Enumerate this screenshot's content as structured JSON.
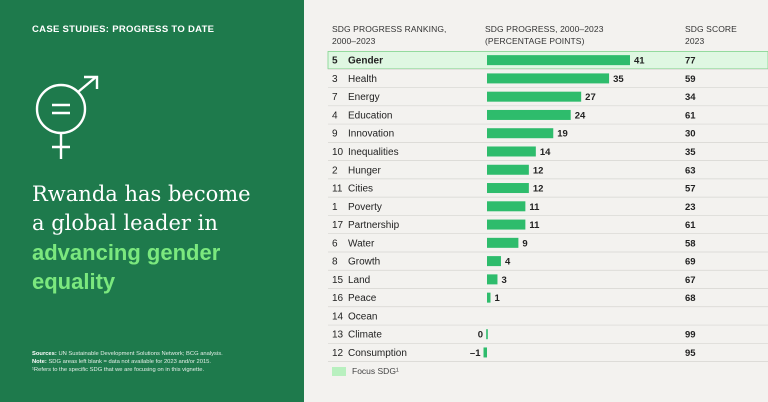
{
  "panel": {
    "kicker": "CASE STUDIES: PROGRESS TO DATE",
    "headline_line1": "Rwanda has become",
    "headline_line2": "a global leader in",
    "headline_accent1": "advancing gender",
    "headline_accent2": "equality",
    "icon": "gender-equality-icon",
    "sources_label": "Sources:",
    "sources_text": "UN Sustainable Development Solutions Network; BCG analysis.",
    "note_label": "Note:",
    "note_text": "SDG areas left blank = data not available for 2023 and/or 2015.",
    "footnote_text": "¹Refers to the specific SDG that we are focusing on in this vignette."
  },
  "colors": {
    "panel_bg": "#1e7a4c",
    "bar": "#2ebc6c",
    "focus_bg": "#dff7e2",
    "focus_border": "#7fd48c",
    "accent_text": "#7be87e"
  },
  "legend": {
    "label": "Focus SDG¹"
  },
  "chart_data": {
    "type": "bar",
    "orientation": "horizontal",
    "headers": {
      "ranking_line1": "SDG PROGRESS RANKING,",
      "ranking_line2": "2000–2023",
      "progress_line1": "SDG PROGRESS, 2000–2023",
      "progress_line2": "(PERCENTAGE POINTS)",
      "score_line1": "SDG SCORE",
      "score_line2": "2023"
    },
    "focus": "Gender",
    "rows": [
      {
        "rank": "5",
        "name": "Gender",
        "progress": 41,
        "label": "41",
        "score": "77"
      },
      {
        "rank": "3",
        "name": "Health",
        "progress": 35,
        "label": "35",
        "score": "59"
      },
      {
        "rank": "7",
        "name": "Energy",
        "progress": 27,
        "label": "27",
        "score": "34"
      },
      {
        "rank": "4",
        "name": "Education",
        "progress": 24,
        "label": "24",
        "score": "61"
      },
      {
        "rank": "9",
        "name": "Innovation",
        "progress": 19,
        "label": "19",
        "score": "30"
      },
      {
        "rank": "10",
        "name": "Inequalities",
        "progress": 14,
        "label": "14",
        "score": "35"
      },
      {
        "rank": "2",
        "name": "Hunger",
        "progress": 12,
        "label": "12",
        "score": "63"
      },
      {
        "rank": "11",
        "name": "Cities",
        "progress": 12,
        "label": "12",
        "score": "57"
      },
      {
        "rank": "1",
        "name": "Poverty",
        "progress": 11,
        "label": "11",
        "score": "23"
      },
      {
        "rank": "17",
        "name": "Partnership",
        "progress": 11,
        "label": "11",
        "score": "61"
      },
      {
        "rank": "6",
        "name": "Water",
        "progress": 9,
        "label": "9",
        "score": "58"
      },
      {
        "rank": "8",
        "name": "Growth",
        "progress": 4,
        "label": "4",
        "score": "69"
      },
      {
        "rank": "15",
        "name": "Land",
        "progress": 3,
        "label": "3",
        "score": "67"
      },
      {
        "rank": "16",
        "name": "Peace",
        "progress": 1,
        "label": "1",
        "score": "68"
      },
      {
        "rank": "14",
        "name": "Ocean",
        "progress": null,
        "label": "",
        "score": ""
      },
      {
        "rank": "13",
        "name": "Climate",
        "progress": 0,
        "label": "0",
        "score": "99"
      },
      {
        "rank": "12",
        "name": "Consumption",
        "progress": -1,
        "label": "–1",
        "score": "95"
      }
    ],
    "xlim": [
      -1,
      41
    ]
  }
}
